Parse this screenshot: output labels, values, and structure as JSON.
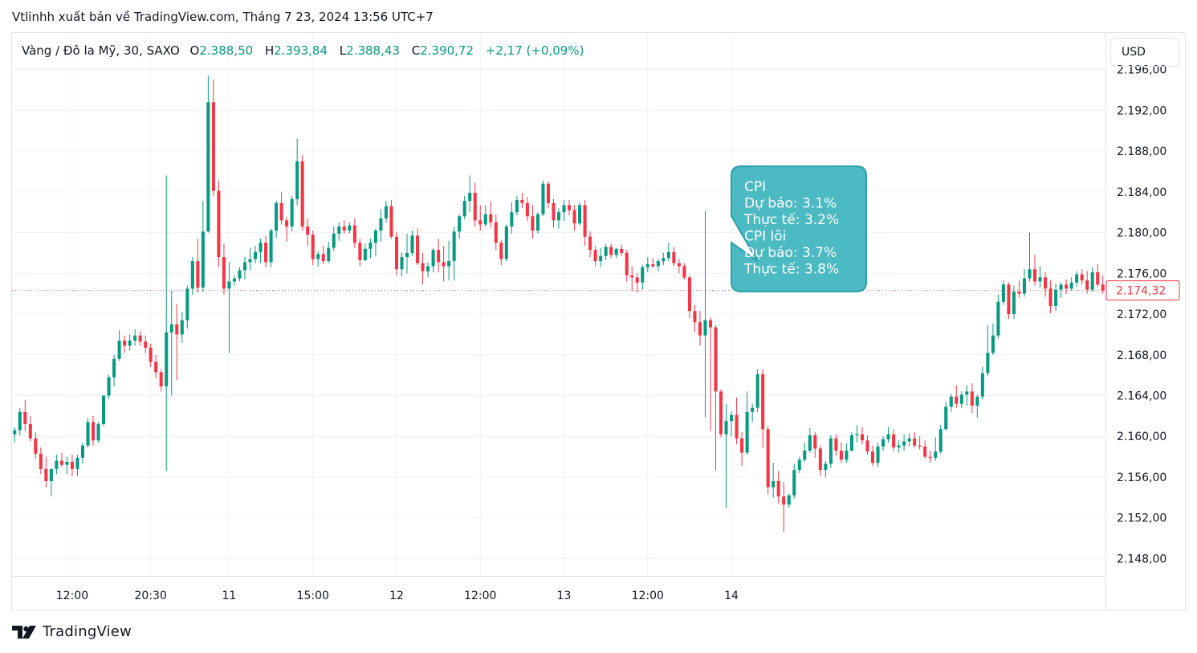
{
  "header": {
    "publisher": "Vtlinhh xuất bản về TradingView.com, Tháng 7 23, 2024 13:56 UTC+7"
  },
  "legend": {
    "symbol": "Vàng / Đô la Mỹ, 30, SAXO",
    "o_label": "O",
    "o_value": "2.388,50",
    "h_label": "H",
    "h_value": "2.393,84",
    "l_label": "L",
    "l_value": "2.388,43",
    "c_label": "C",
    "c_value": "2.390,72",
    "change": "+2,17 (+0,09%)"
  },
  "price_scale": {
    "currency": "USD",
    "last_price_label": "2.174,32"
  },
  "annotation": {
    "lines": [
      "CPI",
      "Dự báo: 3.1%",
      "Thực tế: 3.2%",
      "CPI lõi",
      "Dự báo: 3.7%",
      "Thực tế: 3.8%"
    ]
  },
  "footer": {
    "brand": "TradingView"
  },
  "colors": {
    "up": "#089981",
    "down": "#f23645",
    "grid": "#f0f3fa",
    "annotation_bg": "#4bbac3",
    "annotation_border": "#2aa1a8",
    "last_price": "#f23645"
  },
  "chart_data": {
    "type": "candlestick",
    "instrument": "Vàng / Đô la Mỹ, 30, SAXO",
    "y_ticks": [
      2196,
      2192,
      2188,
      2184,
      2180,
      2176,
      2172,
      2168,
      2164,
      2160,
      2156,
      2152,
      2148
    ],
    "y_tick_labels": [
      "2.196,00",
      "2.192,00",
      "2.188,00",
      "2.184,00",
      "2.180,00",
      "2.176,00",
      "2.172,00",
      "2.168,00",
      "2.164,00",
      "2.160,00",
      "2.156,00",
      "2.152,00",
      "2.148,00"
    ],
    "ylim": [
      2146.3,
      2199.6
    ],
    "x_tick_labels": [
      "12:00",
      "20:30",
      "11",
      "15:00",
      "12",
      "12:00",
      "13",
      "12:00",
      "14"
    ],
    "x_tick_positions": [
      11,
      26,
      41,
      57,
      73,
      89,
      105,
      121,
      137
    ],
    "last_price": 2174.32,
    "candles": [
      [
        2160.2,
        2160.9,
        2159.4,
        2160.6
      ],
      [
        2160.6,
        2162.8,
        2160.1,
        2162.4
      ],
      [
        2162.4,
        2163.6,
        2160.5,
        2161.2
      ],
      [
        2161.2,
        2162.0,
        2159.5,
        2159.8
      ],
      [
        2159.8,
        2160.4,
        2157.8,
        2158.3
      ],
      [
        2158.3,
        2158.9,
        2156.3,
        2156.8
      ],
      [
        2156.8,
        2158.0,
        2155.0,
        2155.6
      ],
      [
        2155.6,
        2156.6,
        2154.1,
        2156.8
      ],
      [
        2156.8,
        2158.2,
        2156.3,
        2157.6
      ],
      [
        2157.6,
        2158.4,
        2157.0,
        2157.2
      ],
      [
        2157.2,
        2158.0,
        2156.3,
        2157.5
      ],
      [
        2157.5,
        2158.2,
        2156.1,
        2156.8
      ],
      [
        2156.8,
        2158.2,
        2156.1,
        2157.9
      ],
      [
        2157.9,
        2159.4,
        2157.3,
        2159.1
      ],
      [
        2159.1,
        2161.8,
        2158.9,
        2161.4
      ],
      [
        2161.4,
        2162.0,
        2159.1,
        2159.6
      ],
      [
        2159.6,
        2161.4,
        2159.4,
        2161.2
      ],
      [
        2161.2,
        2164.0,
        2161.0,
        2164.0
      ],
      [
        2164.0,
        2166.0,
        2163.7,
        2165.8
      ],
      [
        2165.8,
        2168.0,
        2164.9,
        2167.6
      ],
      [
        2167.6,
        2170.4,
        2167.4,
        2169.4
      ],
      [
        2169.4,
        2169.9,
        2168.2,
        2168.9
      ],
      [
        2168.9,
        2170.0,
        2168.4,
        2169.4
      ],
      [
        2169.4,
        2170.5,
        2168.9,
        2169.9
      ],
      [
        2169.9,
        2170.3,
        2168.9,
        2169.3
      ],
      [
        2169.3,
        2169.9,
        2168.2,
        2168.7
      ],
      [
        2168.7,
        2169.1,
        2166.8,
        2167.3
      ],
      [
        2167.3,
        2168.0,
        2165.7,
        2166.3
      ],
      [
        2166.3,
        2166.6,
        2164.4,
        2164.9
      ],
      [
        2164.9,
        2185.6,
        2156.6,
        2170.2
      ],
      [
        2170.2,
        2174.3,
        2164.0,
        2171.0
      ],
      [
        2171.0,
        2173.0,
        2165.5,
        2170.0
      ],
      [
        2170.0,
        2172.2,
        2169.2,
        2171.4
      ],
      [
        2171.4,
        2174.8,
        2170.6,
        2174.5
      ],
      [
        2174.5,
        2177.6,
        2173.9,
        2177.2
      ],
      [
        2177.2,
        2179.4,
        2174.1,
        2174.6
      ],
      [
        2174.6,
        2183.1,
        2174.2,
        2180.1
      ],
      [
        2180.1,
        2195.4,
        2180.0,
        2192.8
      ],
      [
        2192.8,
        2195.0,
        2183.6,
        2184.1
      ],
      [
        2184.1,
        2185.1,
        2176.6,
        2177.6
      ],
      [
        2177.6,
        2178.9,
        2173.9,
        2174.5
      ],
      [
        2174.5,
        2177.1,
        2168.2,
        2175.2
      ],
      [
        2175.2,
        2175.8,
        2174.8,
        2175.5
      ],
      [
        2175.5,
        2176.6,
        2175.2,
        2176.3
      ],
      [
        2176.3,
        2177.6,
        2175.4,
        2177.1
      ],
      [
        2177.1,
        2178.5,
        2176.3,
        2177.4
      ],
      [
        2177.4,
        2178.7,
        2177.0,
        2178.1
      ],
      [
        2178.1,
        2179.4,
        2177.0,
        2179.0
      ],
      [
        2179.0,
        2179.7,
        2176.6,
        2177.1
      ],
      [
        2177.1,
        2180.4,
        2176.6,
        2180.2
      ],
      [
        2180.2,
        2183.1,
        2179.5,
        2182.9
      ],
      [
        2182.9,
        2184.0,
        2180.8,
        2181.2
      ],
      [
        2181.2,
        2181.5,
        2179.1,
        2180.6
      ],
      [
        2180.6,
        2183.6,
        2180.1,
        2183.3
      ],
      [
        2183.3,
        2189.2,
        2182.7,
        2187.0
      ],
      [
        2187.0,
        2187.6,
        2180.2,
        2180.6
      ],
      [
        2180.6,
        2181.4,
        2178.7,
        2179.8
      ],
      [
        2179.8,
        2180.2,
        2176.8,
        2177.4
      ],
      [
        2177.4,
        2178.2,
        2176.7,
        2177.9
      ],
      [
        2177.9,
        2178.7,
        2176.9,
        2177.2
      ],
      [
        2177.2,
        2179.1,
        2177.0,
        2178.5
      ],
      [
        2178.5,
        2180.6,
        2178.2,
        2179.9
      ],
      [
        2179.9,
        2181.0,
        2179.2,
        2180.6
      ],
      [
        2180.6,
        2181.2,
        2179.9,
        2180.2
      ],
      [
        2180.2,
        2181.0,
        2179.9,
        2180.7
      ],
      [
        2180.7,
        2181.4,
        2178.5,
        2179.0
      ],
      [
        2179.0,
        2179.4,
        2176.7,
        2177.3
      ],
      [
        2177.3,
        2178.9,
        2177.2,
        2178.4
      ],
      [
        2178.4,
        2179.4,
        2177.5,
        2179.0
      ],
      [
        2179.0,
        2180.4,
        2177.7,
        2180.2
      ],
      [
        2180.2,
        2182.3,
        2179.1,
        2181.4
      ],
      [
        2181.4,
        2183.1,
        2181.0,
        2182.6
      ],
      [
        2182.6,
        2183.2,
        2179.4,
        2179.6
      ],
      [
        2179.6,
        2180.1,
        2175.8,
        2176.4
      ],
      [
        2176.4,
        2178.0,
        2175.7,
        2177.6
      ],
      [
        2177.6,
        2179.9,
        2176.0,
        2178.0
      ],
      [
        2178.0,
        2180.2,
        2177.7,
        2179.7
      ],
      [
        2179.7,
        2180.4,
        2176.8,
        2177.0
      ],
      [
        2177.0,
        2178.0,
        2174.9,
        2176.2
      ],
      [
        2176.2,
        2177.1,
        2175.6,
        2176.7
      ],
      [
        2176.7,
        2178.5,
        2176.1,
        2178.3
      ],
      [
        2178.3,
        2179.4,
        2176.1,
        2177.1
      ],
      [
        2177.1,
        2178.7,
        2175.2,
        2176.7
      ],
      [
        2176.7,
        2179.2,
        2175.3,
        2177.2
      ],
      [
        2177.2,
        2180.6,
        2175.3,
        2180.1
      ],
      [
        2180.1,
        2181.8,
        2179.4,
        2181.6
      ],
      [
        2181.6,
        2183.6,
        2181.3,
        2183.1
      ],
      [
        2183.1,
        2185.6,
        2182.0,
        2183.9
      ],
      [
        2183.9,
        2184.9,
        2180.6,
        2181.2
      ],
      [
        2181.2,
        2182.7,
        2180.2,
        2180.8
      ],
      [
        2180.8,
        2182.7,
        2180.6,
        2181.8
      ],
      [
        2181.8,
        2183.1,
        2180.5,
        2181.0
      ],
      [
        2181.0,
        2181.8,
        2178.3,
        2179.0
      ],
      [
        2179.0,
        2179.3,
        2176.8,
        2177.4
      ],
      [
        2177.4,
        2180.8,
        2177.2,
        2180.6
      ],
      [
        2180.6,
        2183.0,
        2179.9,
        2182.0
      ],
      [
        2182.0,
        2183.6,
        2181.7,
        2183.2
      ],
      [
        2183.2,
        2183.9,
        2182.4,
        2182.9
      ],
      [
        2182.9,
        2183.5,
        2181.1,
        2181.6
      ],
      [
        2181.6,
        2182.7,
        2179.4,
        2180.2
      ],
      [
        2180.2,
        2182.0,
        2179.9,
        2181.8
      ],
      [
        2181.8,
        2185.1,
        2181.6,
        2184.8
      ],
      [
        2184.8,
        2185.0,
        2182.4,
        2182.9
      ],
      [
        2182.9,
        2183.3,
        2180.5,
        2181.2
      ],
      [
        2181.2,
        2182.4,
        2180.4,
        2182.0
      ],
      [
        2182.0,
        2183.2,
        2181.1,
        2182.7
      ],
      [
        2182.7,
        2183.2,
        2181.7,
        2182.2
      ],
      [
        2182.2,
        2182.7,
        2180.2,
        2180.9
      ],
      [
        2180.9,
        2183.0,
        2180.7,
        2182.7
      ],
      [
        2182.7,
        2183.2,
        2178.7,
        2179.6
      ],
      [
        2179.6,
        2180.1,
        2177.6,
        2178.3
      ],
      [
        2178.3,
        2178.7,
        2176.7,
        2177.2
      ],
      [
        2177.2,
        2178.5,
        2176.6,
        2177.7
      ],
      [
        2177.7,
        2178.9,
        2177.3,
        2178.6
      ],
      [
        2178.6,
        2178.9,
        2177.5,
        2177.8
      ],
      [
        2177.8,
        2178.5,
        2177.5,
        2178.4
      ],
      [
        2178.4,
        2178.8,
        2177.7,
        2178.0
      ],
      [
        2178.0,
        2178.3,
        2175.2,
        2175.8
      ],
      [
        2175.8,
        2176.7,
        2174.2,
        2175.6
      ],
      [
        2175.6,
        2176.0,
        2174.1,
        2175.1
      ],
      [
        2175.1,
        2176.8,
        2174.4,
        2176.6
      ],
      [
        2176.6,
        2177.6,
        2176.1,
        2176.9
      ],
      [
        2176.9,
        2177.5,
        2176.5,
        2176.7
      ],
      [
        2176.7,
        2177.4,
        2176.2,
        2177.2
      ],
      [
        2177.2,
        2178.0,
        2176.8,
        2177.5
      ],
      [
        2177.5,
        2179.0,
        2177.2,
        2178.1
      ],
      [
        2178.1,
        2178.6,
        2176.7,
        2177.0
      ],
      [
        2177.0,
        2177.4,
        2176.0,
        2176.7
      ],
      [
        2176.7,
        2177.0,
        2175.4,
        2175.6
      ],
      [
        2175.6,
        2175.8,
        2171.6,
        2172.3
      ],
      [
        2172.3,
        2172.9,
        2170.2,
        2171.2
      ],
      [
        2171.2,
        2172.3,
        2168.9,
        2169.9
      ],
      [
        2169.9,
        2182.1,
        2161.9,
        2171.4
      ],
      [
        2171.4,
        2171.7,
        2160.5,
        2170.7
      ],
      [
        2170.7,
        2170.9,
        2156.7,
        2164.4
      ],
      [
        2164.4,
        2164.6,
        2159.9,
        2160.2
      ],
      [
        2160.2,
        2163.2,
        2153.0,
        2161.5
      ],
      [
        2161.5,
        2162.5,
        2160.0,
        2162.1
      ],
      [
        2162.1,
        2163.8,
        2159.2,
        2159.8
      ],
      [
        2159.8,
        2160.4,
        2157.1,
        2158.4
      ],
      [
        2158.4,
        2164.4,
        2158.2,
        2162.4
      ],
      [
        2162.4,
        2163.2,
        2161.4,
        2162.8
      ],
      [
        2162.8,
        2166.6,
        2162.4,
        2166.1
      ],
      [
        2166.1,
        2166.6,
        2158.9,
        2160.7
      ],
      [
        2160.7,
        2161.0,
        2154.3,
        2155.0
      ],
      [
        2155.0,
        2157.4,
        2154.0,
        2155.6
      ],
      [
        2155.6,
        2156.6,
        2153.4,
        2154.1
      ],
      [
        2154.1,
        2155.5,
        2150.6,
        2153.3
      ],
      [
        2153.3,
        2154.4,
        2153.0,
        2154.2
      ],
      [
        2154.2,
        2157.3,
        2153.9,
        2156.7
      ],
      [
        2156.7,
        2158.0,
        2156.4,
        2157.7
      ],
      [
        2157.7,
        2159.4,
        2157.5,
        2158.6
      ],
      [
        2158.6,
        2160.8,
        2158.4,
        2160.1
      ],
      [
        2160.1,
        2160.4,
        2157.9,
        2158.8
      ],
      [
        2158.8,
        2159.1,
        2156.1,
        2156.7
      ],
      [
        2156.7,
        2157.6,
        2156.0,
        2157.3
      ],
      [
        2157.3,
        2160.1,
        2156.9,
        2159.8
      ],
      [
        2159.8,
        2160.2,
        2158.1,
        2158.6
      ],
      [
        2158.6,
        2159.4,
        2157.4,
        2157.7
      ],
      [
        2157.7,
        2159.3,
        2157.4,
        2158.6
      ],
      [
        2158.6,
        2160.4,
        2158.5,
        2160.1
      ],
      [
        2160.1,
        2161.1,
        2159.4,
        2160.2
      ],
      [
        2160.2,
        2160.9,
        2159.2,
        2159.6
      ],
      [
        2159.6,
        2160.1,
        2158.2,
        2158.5
      ],
      [
        2158.5,
        2159.1,
        2157.1,
        2157.4
      ],
      [
        2157.4,
        2159.4,
        2157.0,
        2159.0
      ],
      [
        2159.0,
        2160.0,
        2158.6,
        2159.7
      ],
      [
        2159.7,
        2160.9,
        2159.4,
        2160.2
      ],
      [
        2160.2,
        2160.7,
        2158.5,
        2158.9
      ],
      [
        2158.9,
        2159.6,
        2158.4,
        2159.1
      ],
      [
        2159.1,
        2160.2,
        2158.6,
        2159.5
      ],
      [
        2159.5,
        2160.3,
        2159.0,
        2159.8
      ],
      [
        2159.8,
        2160.4,
        2158.9,
        2159.1
      ],
      [
        2159.1,
        2160.0,
        2158.7,
        2159.0
      ],
      [
        2159.0,
        2159.6,
        2157.8,
        2158.0
      ],
      [
        2158.0,
        2158.6,
        2157.4,
        2157.9
      ],
      [
        2157.9,
        2159.9,
        2157.6,
        2158.5
      ],
      [
        2158.5,
        2161.1,
        2158.3,
        2160.7
      ],
      [
        2160.7,
        2163.4,
        2160.6,
        2162.9
      ],
      [
        2162.9,
        2164.2,
        2162.4,
        2163.9
      ],
      [
        2163.9,
        2165.0,
        2162.8,
        2163.2
      ],
      [
        2163.2,
        2164.4,
        2162.8,
        2164.1
      ],
      [
        2164.1,
        2165.0,
        2163.0,
        2164.4
      ],
      [
        2164.4,
        2165.2,
        2162.3,
        2163.0
      ],
      [
        2163.0,
        2164.1,
        2161.8,
        2163.9
      ],
      [
        2163.9,
        2166.8,
        2163.6,
        2166.2
      ],
      [
        2166.2,
        2170.9,
        2165.9,
        2168.2
      ],
      [
        2168.2,
        2171.1,
        2168.0,
        2169.9
      ],
      [
        2169.9,
        2173.9,
        2169.6,
        2173.2
      ],
      [
        2173.2,
        2175.3,
        2172.9,
        2174.9
      ],
      [
        2174.9,
        2175.1,
        2171.5,
        2172.0
      ],
      [
        2172.0,
        2174.8,
        2171.5,
        2174.2
      ],
      [
        2174.2,
        2175.3,
        2173.6,
        2174.0
      ],
      [
        2174.0,
        2176.4,
        2173.7,
        2175.5
      ],
      [
        2175.5,
        2180.0,
        2175.2,
        2176.4
      ],
      [
        2176.4,
        2177.8,
        2174.8,
        2175.2
      ],
      [
        2175.2,
        2176.7,
        2174.6,
        2175.6
      ],
      [
        2175.6,
        2176.1,
        2173.7,
        2174.5
      ],
      [
        2174.5,
        2175.3,
        2172.1,
        2172.8
      ],
      [
        2172.8,
        2175.0,
        2172.3,
        2174.4
      ],
      [
        2174.4,
        2175.1,
        2173.6,
        2174.9
      ],
      [
        2174.9,
        2175.4,
        2174.0,
        2174.5
      ],
      [
        2174.5,
        2175.6,
        2174.3,
        2175.1
      ],
      [
        2175.1,
        2176.2,
        2174.7,
        2175.9
      ],
      [
        2175.9,
        2176.4,
        2174.9,
        2175.3
      ],
      [
        2175.3,
        2176.2,
        2174.0,
        2174.4
      ],
      [
        2174.4,
        2176.6,
        2174.2,
        2176.1
      ],
      [
        2176.1,
        2176.9,
        2174.7,
        2174.9
      ],
      [
        2174.9,
        2175.8,
        2174.0,
        2174.3
      ]
    ]
  }
}
